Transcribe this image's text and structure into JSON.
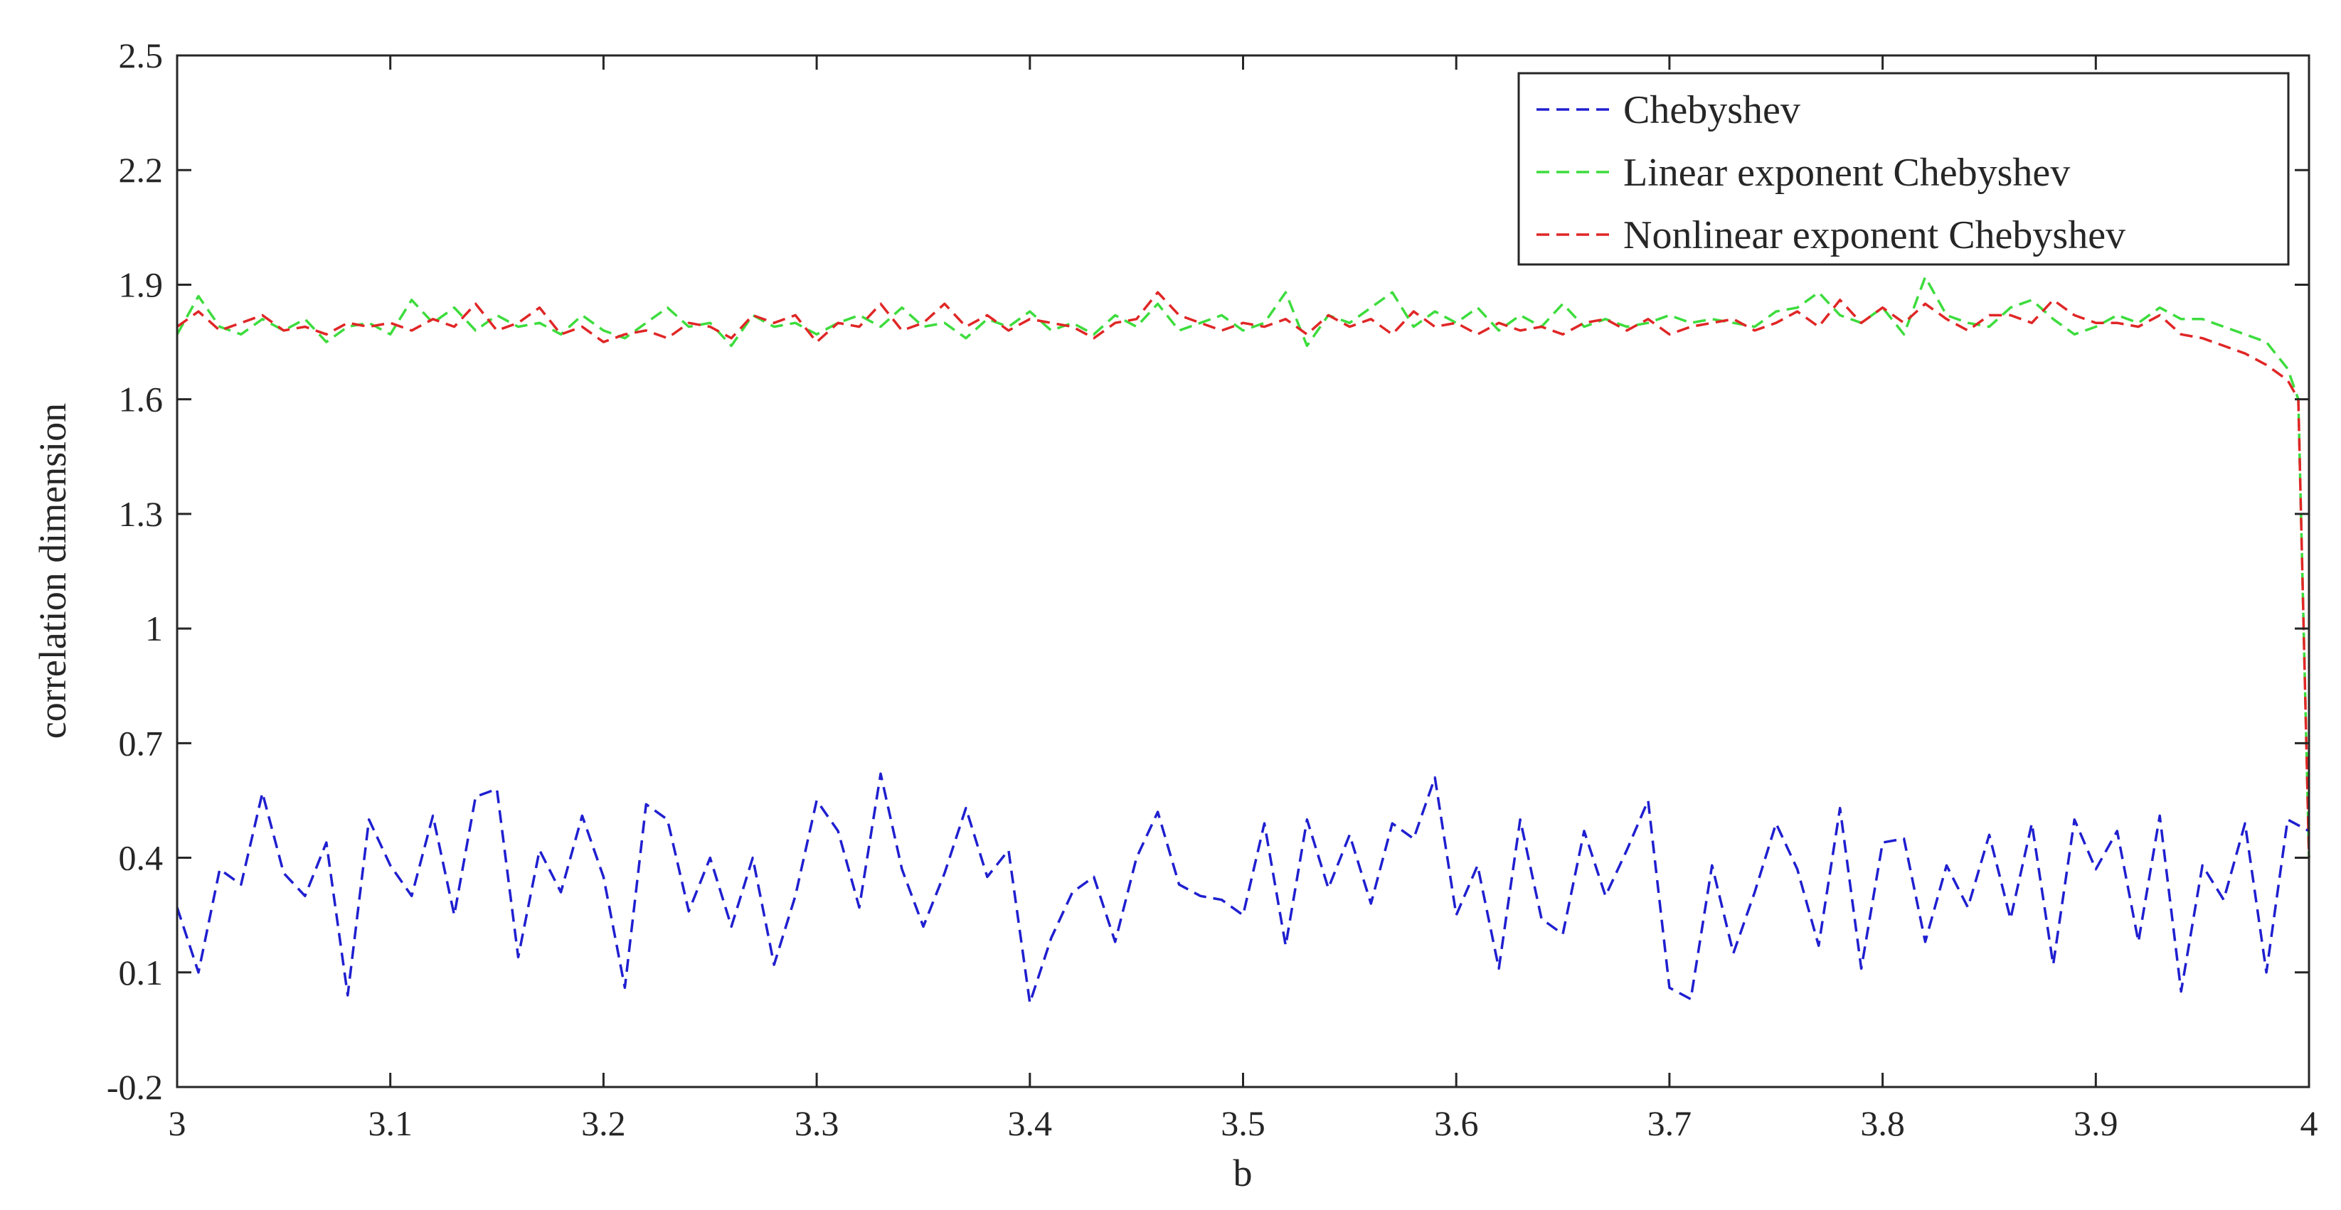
{
  "chart_data": {
    "type": "line",
    "xlabel": "b",
    "ylabel": "correlation dimension",
    "xlim": [
      3,
      4
    ],
    "ylim": [
      -0.2,
      2.5
    ],
    "xticks": [
      3,
      3.1,
      3.2,
      3.3,
      3.4,
      3.5,
      3.6,
      3.7,
      3.8,
      3.9,
      4
    ],
    "xtick_labels": [
      "3",
      "3.1",
      "3.2",
      "3.3",
      "3.4",
      "3.5",
      "3.6",
      "3.7",
      "3.8",
      "3.9",
      "4"
    ],
    "yticks": [
      -0.2,
      0.1,
      0.4,
      0.7,
      1,
      1.3,
      1.6,
      1.9,
      2.2,
      2.5
    ],
    "ytick_labels": [
      "-0.2",
      "0.1",
      "0.4",
      "0.7",
      "1",
      "1.3",
      "1.6",
      "1.9",
      "2.2",
      "2.5"
    ],
    "grid": false,
    "legend": {
      "position": "top-right"
    },
    "line_style": "dashed",
    "series": [
      {
        "name": "Chebyshev",
        "color": "#1f1fd0",
        "x": [
          3.0,
          3.01,
          3.02,
          3.03,
          3.04,
          3.05,
          3.06,
          3.07,
          3.08,
          3.09,
          3.1,
          3.11,
          3.12,
          3.13,
          3.14,
          3.15,
          3.16,
          3.17,
          3.18,
          3.19,
          3.2,
          3.21,
          3.22,
          3.23,
          3.24,
          3.25,
          3.26,
          3.27,
          3.28,
          3.29,
          3.3,
          3.31,
          3.32,
          3.33,
          3.34,
          3.35,
          3.36,
          3.37,
          3.38,
          3.39,
          3.4,
          3.41,
          3.42,
          3.43,
          3.44,
          3.45,
          3.46,
          3.47,
          3.48,
          3.49,
          3.5,
          3.51,
          3.52,
          3.53,
          3.54,
          3.55,
          3.56,
          3.57,
          3.58,
          3.59,
          3.6,
          3.61,
          3.62,
          3.63,
          3.64,
          3.65,
          3.66,
          3.67,
          3.68,
          3.69,
          3.7,
          3.71,
          3.72,
          3.73,
          3.74,
          3.75,
          3.76,
          3.77,
          3.78,
          3.79,
          3.8,
          3.81,
          3.82,
          3.83,
          3.84,
          3.85,
          3.86,
          3.87,
          3.88,
          3.89,
          3.9,
          3.91,
          3.92,
          3.93,
          3.94,
          3.95,
          3.96,
          3.97,
          3.98,
          3.99,
          4.0
        ],
        "y": [
          0.27,
          0.1,
          0.37,
          0.33,
          0.57,
          0.36,
          0.3,
          0.44,
          0.04,
          0.5,
          0.38,
          0.3,
          0.51,
          0.25,
          0.56,
          0.58,
          0.14,
          0.42,
          0.31,
          0.51,
          0.35,
          0.06,
          0.54,
          0.5,
          0.26,
          0.4,
          0.22,
          0.4,
          0.12,
          0.3,
          0.55,
          0.47,
          0.27,
          0.62,
          0.37,
          0.22,
          0.36,
          0.53,
          0.35,
          0.42,
          0.02,
          0.19,
          0.31,
          0.35,
          0.18,
          0.4,
          0.52,
          0.33,
          0.3,
          0.29,
          0.25,
          0.49,
          0.17,
          0.5,
          0.32,
          0.46,
          0.28,
          0.49,
          0.45,
          0.61,
          0.25,
          0.38,
          0.11,
          0.5,
          0.24,
          0.2,
          0.47,
          0.3,
          0.42,
          0.55,
          0.06,
          0.03,
          0.38,
          0.15,
          0.31,
          0.49,
          0.37,
          0.17,
          0.53,
          0.11,
          0.44,
          0.45,
          0.18,
          0.38,
          0.27,
          0.46,
          0.24,
          0.49,
          0.12,
          0.5,
          0.37,
          0.47,
          0.18,
          0.51,
          0.05,
          0.38,
          0.29,
          0.49,
          0.1,
          0.5,
          0.47
        ]
      },
      {
        "name": "Linear exponent Chebyshev",
        "color": "#3ddc3d",
        "x": [
          3.0,
          3.01,
          3.02,
          3.03,
          3.04,
          3.05,
          3.06,
          3.07,
          3.08,
          3.09,
          3.1,
          3.11,
          3.12,
          3.13,
          3.14,
          3.15,
          3.16,
          3.17,
          3.18,
          3.19,
          3.2,
          3.21,
          3.22,
          3.23,
          3.24,
          3.25,
          3.26,
          3.27,
          3.28,
          3.29,
          3.3,
          3.31,
          3.32,
          3.33,
          3.34,
          3.35,
          3.36,
          3.37,
          3.38,
          3.39,
          3.4,
          3.41,
          3.42,
          3.43,
          3.44,
          3.45,
          3.46,
          3.47,
          3.48,
          3.49,
          3.5,
          3.51,
          3.52,
          3.53,
          3.54,
          3.55,
          3.56,
          3.57,
          3.58,
          3.59,
          3.6,
          3.61,
          3.62,
          3.63,
          3.64,
          3.65,
          3.66,
          3.67,
          3.68,
          3.69,
          3.7,
          3.71,
          3.72,
          3.73,
          3.74,
          3.75,
          3.76,
          3.77,
          3.78,
          3.79,
          3.8,
          3.81,
          3.82,
          3.83,
          3.84,
          3.85,
          3.86,
          3.87,
          3.88,
          3.89,
          3.9,
          3.91,
          3.92,
          3.93,
          3.94,
          3.95,
          3.96,
          3.97,
          3.98,
          3.99,
          3.995,
          4.0
        ],
        "y": [
          1.77,
          1.87,
          1.79,
          1.77,
          1.81,
          1.78,
          1.81,
          1.75,
          1.79,
          1.8,
          1.77,
          1.86,
          1.8,
          1.84,
          1.78,
          1.82,
          1.79,
          1.8,
          1.77,
          1.82,
          1.78,
          1.76,
          1.8,
          1.84,
          1.79,
          1.8,
          1.74,
          1.82,
          1.79,
          1.8,
          1.77,
          1.8,
          1.82,
          1.79,
          1.84,
          1.79,
          1.8,
          1.76,
          1.81,
          1.79,
          1.83,
          1.78,
          1.8,
          1.77,
          1.82,
          1.79,
          1.85,
          1.78,
          1.8,
          1.82,
          1.78,
          1.8,
          1.88,
          1.74,
          1.82,
          1.8,
          1.84,
          1.88,
          1.79,
          1.83,
          1.8,
          1.84,
          1.78,
          1.82,
          1.79,
          1.85,
          1.79,
          1.81,
          1.79,
          1.8,
          1.82,
          1.8,
          1.81,
          1.8,
          1.79,
          1.83,
          1.84,
          1.88,
          1.82,
          1.8,
          1.84,
          1.77,
          1.92,
          1.82,
          1.8,
          1.79,
          1.84,
          1.86,
          1.81,
          1.77,
          1.79,
          1.82,
          1.8,
          1.84,
          1.81,
          1.81,
          1.79,
          1.77,
          1.75,
          1.68,
          1.6,
          0.4
        ]
      },
      {
        "name": "Nonlinear exponent Chebyshev",
        "color": "#e02626",
        "x": [
          3.0,
          3.01,
          3.02,
          3.03,
          3.04,
          3.05,
          3.06,
          3.07,
          3.08,
          3.09,
          3.1,
          3.11,
          3.12,
          3.13,
          3.14,
          3.15,
          3.16,
          3.17,
          3.18,
          3.19,
          3.2,
          3.21,
          3.22,
          3.23,
          3.24,
          3.25,
          3.26,
          3.27,
          3.28,
          3.29,
          3.3,
          3.31,
          3.32,
          3.33,
          3.34,
          3.35,
          3.36,
          3.37,
          3.38,
          3.39,
          3.4,
          3.41,
          3.42,
          3.43,
          3.44,
          3.45,
          3.46,
          3.47,
          3.48,
          3.49,
          3.5,
          3.51,
          3.52,
          3.53,
          3.54,
          3.55,
          3.56,
          3.57,
          3.58,
          3.59,
          3.6,
          3.61,
          3.62,
          3.63,
          3.64,
          3.65,
          3.66,
          3.67,
          3.68,
          3.69,
          3.7,
          3.71,
          3.72,
          3.73,
          3.74,
          3.75,
          3.76,
          3.77,
          3.78,
          3.79,
          3.8,
          3.81,
          3.82,
          3.83,
          3.84,
          3.85,
          3.86,
          3.87,
          3.88,
          3.89,
          3.9,
          3.91,
          3.92,
          3.93,
          3.94,
          3.95,
          3.96,
          3.97,
          3.98,
          3.99,
          3.995,
          4.0
        ],
        "y": [
          1.79,
          1.83,
          1.78,
          1.8,
          1.82,
          1.78,
          1.79,
          1.77,
          1.8,
          1.79,
          1.8,
          1.78,
          1.81,
          1.79,
          1.85,
          1.78,
          1.8,
          1.84,
          1.77,
          1.79,
          1.75,
          1.77,
          1.78,
          1.76,
          1.8,
          1.79,
          1.76,
          1.82,
          1.8,
          1.82,
          1.75,
          1.8,
          1.79,
          1.85,
          1.78,
          1.8,
          1.85,
          1.79,
          1.82,
          1.78,
          1.81,
          1.8,
          1.79,
          1.76,
          1.8,
          1.81,
          1.88,
          1.82,
          1.8,
          1.78,
          1.8,
          1.79,
          1.81,
          1.77,
          1.82,
          1.79,
          1.81,
          1.77,
          1.83,
          1.79,
          1.8,
          1.77,
          1.8,
          1.78,
          1.79,
          1.77,
          1.8,
          1.81,
          1.78,
          1.81,
          1.77,
          1.79,
          1.8,
          1.81,
          1.78,
          1.8,
          1.83,
          1.79,
          1.86,
          1.8,
          1.84,
          1.8,
          1.85,
          1.81,
          1.78,
          1.82,
          1.82,
          1.8,
          1.86,
          1.82,
          1.8,
          1.8,
          1.79,
          1.82,
          1.77,
          1.76,
          1.74,
          1.72,
          1.69,
          1.65,
          1.6,
          0.4
        ]
      }
    ]
  }
}
